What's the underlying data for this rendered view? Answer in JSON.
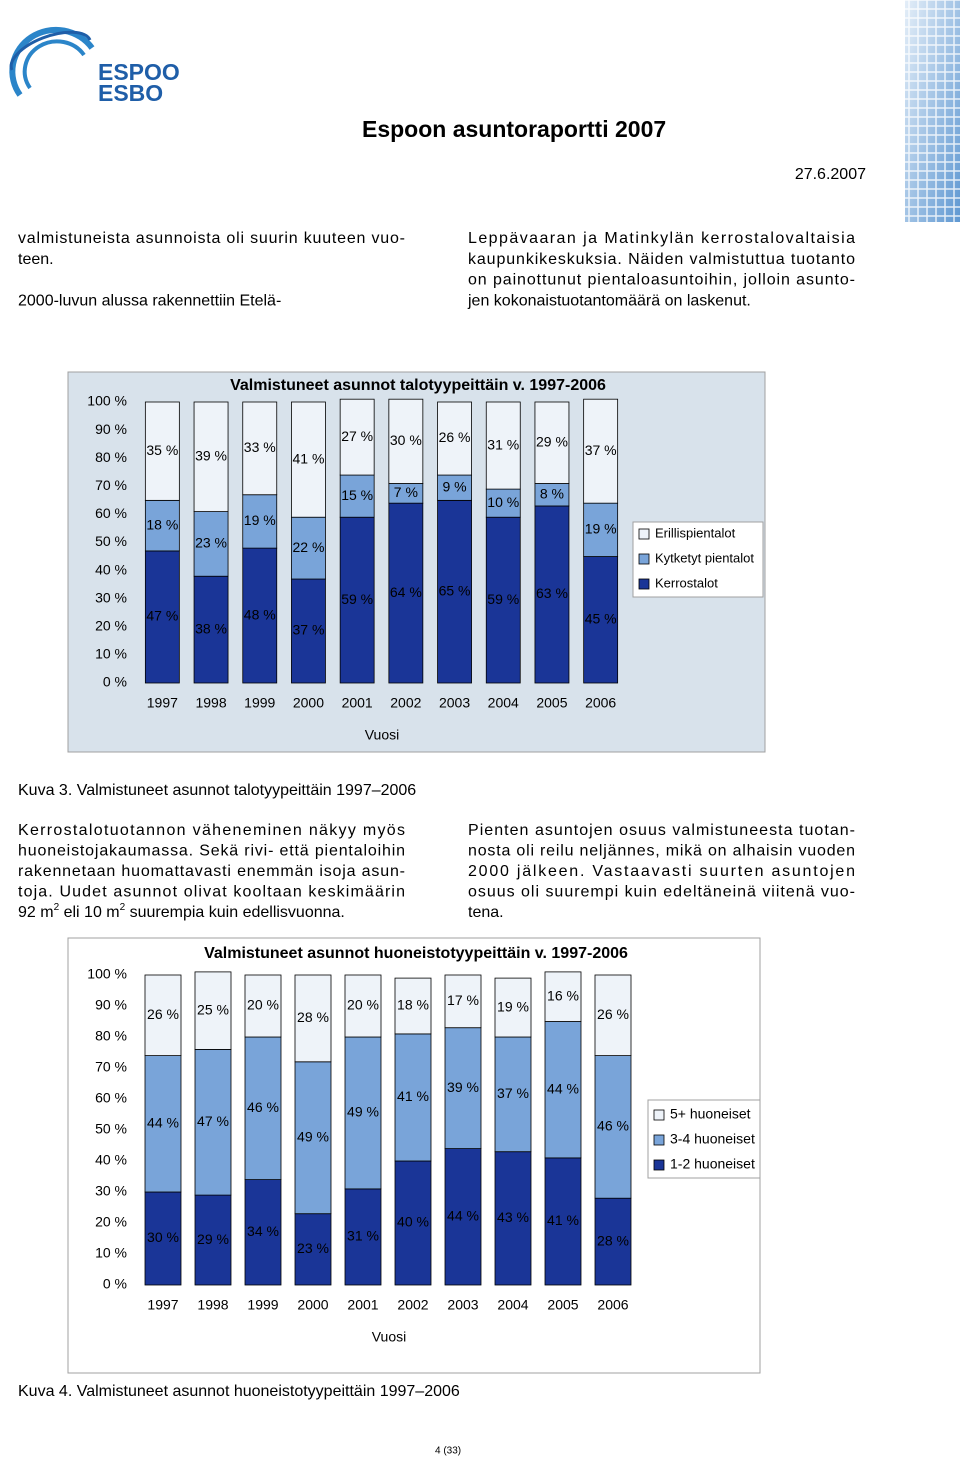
{
  "header": {
    "logo": [
      "ESPOO",
      "ESBO"
    ],
    "title": "Espoon asuntoraportti 2007",
    "date": "27.6.2007"
  },
  "intro": {
    "left": [
      [
        "valmistuneista asunnoista oli suurin kuuteen vuo-",
        "teen."
      ],
      [
        "2000-luvun alussa rakennettiin Etelä-"
      ]
    ],
    "right": [
      [
        "Leppävaaran ja Matinkylän kerrostalovaltaisia",
        "kaupunkikeskuksia. Näiden valmistuttua tuotanto",
        "on painottunut pientaloasuntoihin, jolloin asunto-",
        "jen kokonaistuotantomäärä on laskenut."
      ]
    ]
  },
  "body": {
    "left": [
      [
        "Kerrostalotuotannon väheneminen näkyy myös",
        "huoneistojakaumassa. Sekä rivi- että pientaloihin",
        "rakennetaan huomattavasti enemmän isoja asun-",
        "toja. Uudet asunnot olivat kooltaan keskimäärin",
        [
          "92 m",
          "2",
          " eli 10 m",
          "2",
          " suurempia kuin edellisvuonna."
        ]
      ]
    ],
    "right": [
      [
        "Pienten asuntojen osuus valmistuneesta tuotan-",
        "nosta oli reilu neljännes, mikä on alhaisin vuoden",
        "2000 jälkeen. Vastaavasti suurten asuntojen",
        "osuus oli suurempi kuin edeltäneinä viitenä vuo-",
        "tena."
      ]
    ]
  },
  "captions": [
    "Kuva 3. Valmistuneet asunnot talotyypeittäin 1997–2006",
    "Kuva 4. Valmistuneet asunnot huoneistotyypeittäin 1997–2006"
  ],
  "footer": "4 (33)",
  "chart_data": [
    {
      "type": "bar",
      "stacked": true,
      "title": "Valmistuneet asunnot talotyypeittäin v. 1997-2006",
      "x_label": "Vuosi",
      "categories": [
        "1997",
        "1998",
        "1999",
        "2000",
        "2001",
        "2002",
        "2003",
        "2004",
        "2005",
        "2006"
      ],
      "series": [
        {
          "name": "Kerrostalot",
          "color": "#1a3597",
          "values": [
            47,
            38,
            48,
            37,
            59,
            64,
            65,
            59,
            63,
            45
          ],
          "value_labels": [
            "47 %",
            "38 %",
            "48 %",
            "37 %",
            "59 %",
            "64 %",
            "65 %",
            "59 %",
            "63 %",
            "45 %"
          ]
        },
        {
          "name": "Kytketyt pientalot",
          "color": "#79a4d9",
          "values": [
            18,
            23,
            19,
            22,
            15,
            7,
            9,
            10,
            8,
            19
          ],
          "value_labels": [
            "18 %",
            "23 %",
            "19 %",
            "22 %",
            "15 %",
            "7 %",
            "9 %",
            "10 %",
            "8 %",
            "19 %"
          ]
        },
        {
          "name": "Erillispientalot",
          "color": "#eef3f9",
          "values": [
            35,
            39,
            33,
            41,
            27,
            30,
            26,
            31,
            29,
            37
          ],
          "value_labels": [
            "35 %",
            "39 %",
            "33 %",
            "41 %",
            "27 %",
            "30 %",
            "26 %",
            "31 %",
            "29 %",
            "37 %"
          ]
        }
      ],
      "ylim": [
        0,
        100
      ],
      "yticks": [
        {
          "value": 0,
          "label": "0 %"
        },
        {
          "value": 10,
          "label": "10 %"
        },
        {
          "value": 20,
          "label": "20 %"
        },
        {
          "value": 30,
          "label": "30 %"
        },
        {
          "value": 40,
          "label": "40 %"
        },
        {
          "value": 50,
          "label": "50 %"
        },
        {
          "value": 60,
          "label": "60 %"
        },
        {
          "value": 70,
          "label": "70 %"
        },
        {
          "value": 80,
          "label": "80 %"
        },
        {
          "value": 90,
          "label": "90 %"
        },
        {
          "value": 100,
          "label": "100 %"
        }
      ],
      "background": "#d8e2eb"
    },
    {
      "type": "bar",
      "stacked": true,
      "title": "Valmistuneet asunnot huoneistotyypeittäin v. 1997-2006",
      "x_label": "Vuosi",
      "categories": [
        "1997",
        "1998",
        "1999",
        "2000",
        "2001",
        "2002",
        "2003",
        "2004",
        "2005",
        "2006"
      ],
      "series": [
        {
          "name": "1-2 huoneiset",
          "color": "#1a3597",
          "values": [
            30,
            29,
            34,
            23,
            31,
            40,
            44,
            43,
            41,
            28
          ],
          "value_labels": [
            "30 %",
            "29 %",
            "34 %",
            "23 %",
            "31 %",
            "40 %",
            "44 %",
            "43 %",
            "41 %",
            "28 %"
          ]
        },
        {
          "name": "3-4 huoneiset",
          "color": "#79a4d9",
          "values": [
            44,
            47,
            46,
            49,
            49,
            41,
            39,
            37,
            44,
            46
          ],
          "value_labels": [
            "44 %",
            "47 %",
            "46 %",
            "49 %",
            "49 %",
            "41 %",
            "39 %",
            "37 %",
            "44 %",
            "46 %"
          ]
        },
        {
          "name": "5+ huoneiset",
          "color": "#eef3f9",
          "values": [
            26,
            25,
            20,
            28,
            20,
            18,
            17,
            19,
            16,
            26
          ],
          "value_labels": [
            "26 %",
            "25 %",
            "20 %",
            "28 %",
            "20 %",
            "18 %",
            "17 %",
            "19 %",
            "16 %",
            "26 %"
          ]
        }
      ],
      "ylim": [
        0,
        100
      ],
      "yticks": [
        {
          "value": 0,
          "label": "0 %"
        },
        {
          "value": 10,
          "label": "10 %"
        },
        {
          "value": 20,
          "label": "20 %"
        },
        {
          "value": 30,
          "label": "30 %"
        },
        {
          "value": 40,
          "label": "40 %"
        },
        {
          "value": 50,
          "label": "50 %"
        },
        {
          "value": 60,
          "label": "60 %"
        },
        {
          "value": 70,
          "label": "70 %"
        },
        {
          "value": 80,
          "label": "80 %"
        },
        {
          "value": 90,
          "label": "90 %"
        },
        {
          "value": 100,
          "label": "100 %"
        }
      ],
      "background": "#ffffff"
    }
  ]
}
